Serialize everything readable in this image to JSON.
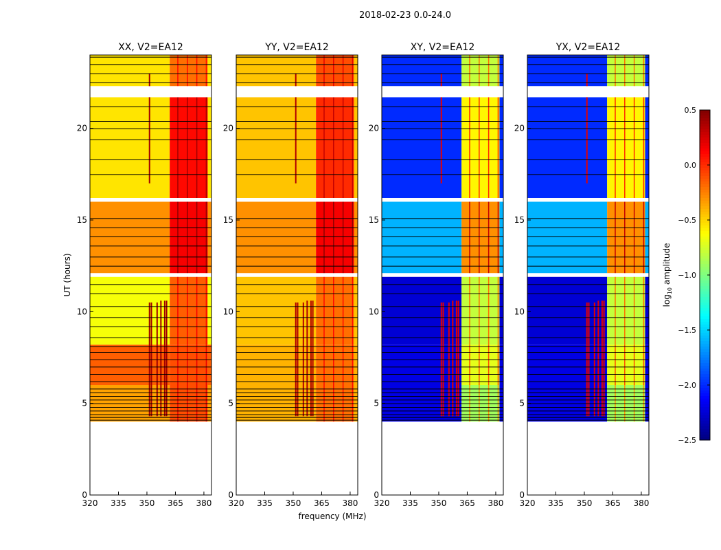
{
  "chart_data": {
    "type": "heatmap",
    "title": "2018-02-23 0.0-24.0",
    "xlabel": "frequency (MHz)",
    "ylabel": "UT (hours)",
    "xlim": [
      320,
      384
    ],
    "ylim": [
      0,
      24
    ],
    "xticks": [
      320,
      335,
      350,
      365,
      380
    ],
    "yticks": [
      0,
      5,
      10,
      15,
      20
    ],
    "colorbar": {
      "label": "log10 amplitude",
      "label_main": "log",
      "label_sub": "10",
      "label_rest": " amplitude",
      "range": [
        -2.5,
        0.5
      ],
      "ticks": [
        "0.5",
        "0.0",
        "−0.5",
        "−1.0",
        "−1.5",
        "−2.0",
        "−2.5"
      ],
      "tick_values": [
        0.5,
        0.0,
        -0.5,
        -1.0,
        -1.5,
        -2.0,
        -2.5
      ],
      "colormap": "jet"
    },
    "time_blocks": [
      [
        4.0,
        6.0
      ],
      [
        6.0,
        8.2
      ],
      [
        8.2,
        11.9
      ],
      [
        12.1,
        16.0
      ],
      [
        16.2,
        21.7
      ],
      [
        22.3,
        24.0
      ]
    ],
    "freq_split": 362,
    "no_data_gaps": [
      [
        0,
        4.0
      ],
      [
        11.9,
        12.1
      ],
      [
        16.0,
        16.2
      ],
      [
        21.7,
        22.3
      ]
    ],
    "flag_lines": [
      4.1,
      4.25,
      4.4,
      4.6,
      4.8,
      5.0,
      5.2,
      5.4,
      5.6,
      5.8,
      6.2,
      6.6,
      7.0,
      7.4,
      7.8,
      8.1,
      8.6,
      9.2,
      9.7,
      10.3,
      11.0,
      11.5,
      12.5,
      13.0,
      13.6,
      14.1,
      14.6,
      15.1,
      17.5,
      18.3,
      19.4,
      20.0,
      20.4,
      21.2,
      22.5,
      23.0,
      23.5,
      23.9
    ],
    "rfi_lines": [
      {
        "freq": 351,
        "t": [
          4.3,
          10.5
        ]
      },
      {
        "freq": 351,
        "t": [
          17.0,
          23.0
        ]
      },
      {
        "freq": 352,
        "t": [
          4.3,
          10.5
        ]
      },
      {
        "freq": 355,
        "t": [
          4.3,
          10.5
        ]
      },
      {
        "freq": 357,
        "t": [
          4.3,
          10.6
        ]
      },
      {
        "freq": 359,
        "t": [
          4.3,
          10.6
        ]
      },
      {
        "freq": 360,
        "t": [
          4.3,
          10.6
        ]
      }
    ],
    "panels": [
      {
        "title": "XX, V2=EA12",
        "low": [
          -0.35,
          -0.15,
          -0.65,
          -0.3,
          -0.55,
          -0.55
        ],
        "high": [
          -0.1,
          -0.1,
          -0.15,
          0.15,
          0.1,
          -0.2
        ],
        "rfi": 0.4
      },
      {
        "title": "YY, V2=EA12",
        "low": [
          -0.4,
          -0.4,
          -0.45,
          -0.3,
          -0.45,
          -0.45
        ],
        "high": [
          -0.2,
          -0.2,
          -0.2,
          0.15,
          0.0,
          -0.1
        ],
        "rfi": 0.35
      },
      {
        "title": "XY, V2=EA12",
        "low": [
          -2.2,
          -2.2,
          -2.25,
          -1.6,
          -2.0,
          -2.0
        ],
        "high": [
          -0.9,
          -0.7,
          -0.8,
          -0.3,
          -0.6,
          -0.8
        ],
        "rfi": 0.2
      },
      {
        "title": "YX, V2=EA12",
        "low": [
          -2.2,
          -2.2,
          -2.25,
          -1.6,
          -2.0,
          -2.0
        ],
        "high": [
          -0.9,
          -0.7,
          -0.8,
          -0.3,
          -0.6,
          -0.8
        ],
        "rfi": 0.2
      }
    ]
  }
}
